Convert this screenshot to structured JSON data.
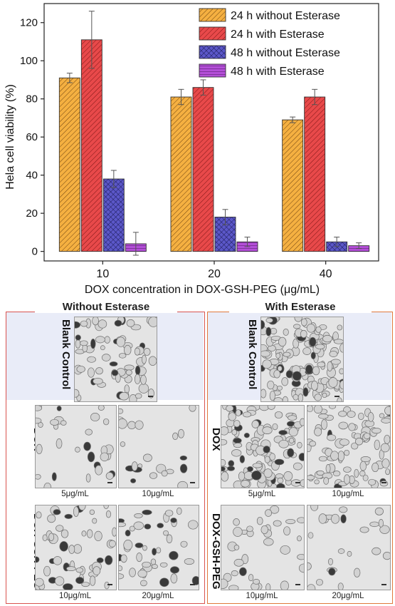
{
  "chart_data": {
    "type": "bar",
    "categories": [
      "10",
      "20",
      "40"
    ],
    "series": [
      {
        "name": "24 h without Esterase",
        "values": [
          91,
          81,
          69
        ],
        "errors": [
          2.5,
          4,
          1.5
        ],
        "color": "#f5b041"
      },
      {
        "name": "24 h with Esterase",
        "values": [
          111,
          86,
          81
        ],
        "errors": [
          15,
          4,
          4
        ],
        "color": "#e8494a"
      },
      {
        "name": "48 h without Esterase",
        "values": [
          38,
          18,
          5
        ],
        "errors": [
          4.5,
          4,
          2.5
        ],
        "color": "#5b57c8"
      },
      {
        "name": "48 h with Esterase",
        "values": [
          4,
          5,
          3
        ],
        "errors": [
          6,
          2.5,
          1.5
        ],
        "color": "#b44fd8"
      }
    ],
    "xlabel": "DOX concentration in DOX-GSH-PEG (μg/mL)",
    "ylabel": "Hela cell viability (%)",
    "ylim": [
      -5,
      130
    ],
    "yticks": [
      0,
      20,
      40,
      60,
      80,
      100,
      120
    ],
    "legend_position": "top-right",
    "grid": false
  },
  "panels": {
    "left": {
      "title": "Without Esterase",
      "blank_label": "Blank Control",
      "dox_label": "DOX",
      "dgp_label": "DOX-GSH-PEG",
      "dox_caps": [
        "5μg/mL",
        "10μg/mL"
      ],
      "dgp_caps": [
        "10μg/mL",
        "20μg/mL"
      ]
    },
    "right": {
      "title": "With Esterase",
      "blank_label": "Blank Control",
      "dox_label": "DOX",
      "dgp_label": "DOX-GSH-PEG",
      "dox_caps": [
        "5μg/mL",
        "10μg/mL"
      ],
      "dgp_caps": [
        "10μg/mL",
        "20μg/mL"
      ]
    }
  },
  "colors": {
    "panel_border": "#d9534f",
    "panel_tint": "#e9ecf8"
  }
}
